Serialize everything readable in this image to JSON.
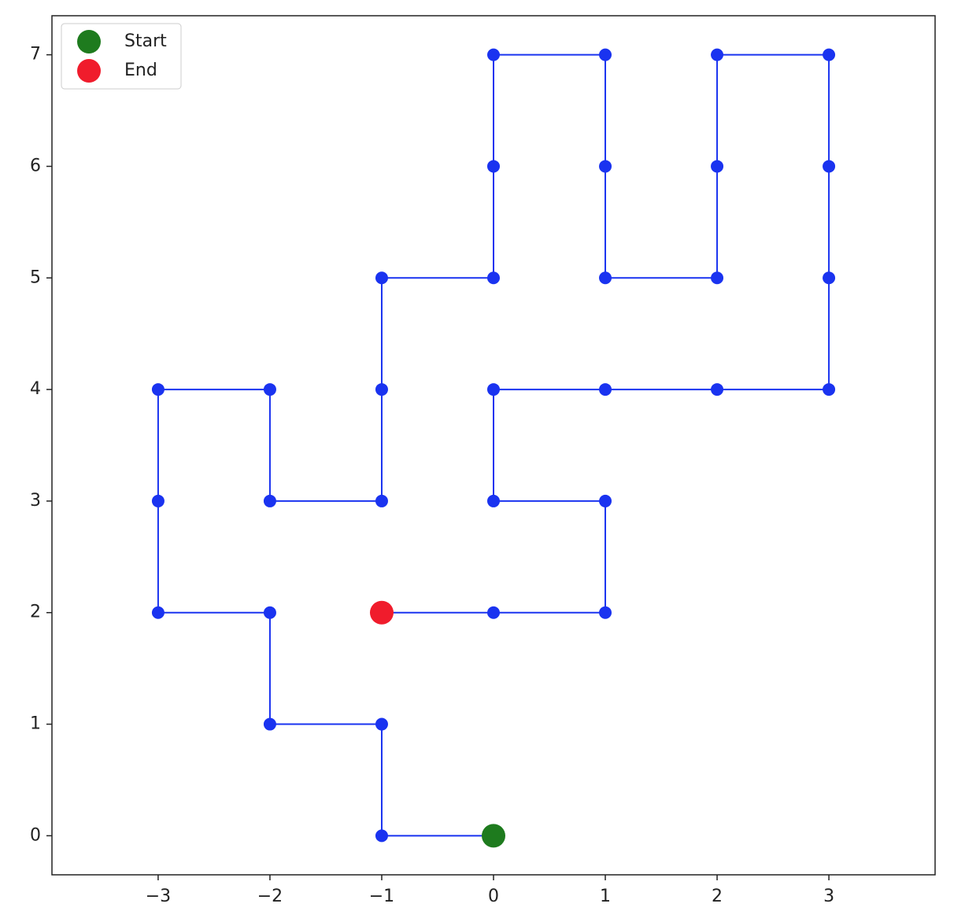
{
  "chart_data": {
    "type": "line",
    "x": [
      0,
      -1,
      -1,
      -2,
      -2,
      -3,
      -3,
      -3,
      -2,
      -2,
      -1,
      -1,
      -1,
      0,
      0,
      0,
      1,
      1,
      1,
      2,
      2,
      2,
      3,
      3,
      3,
      3,
      2,
      1,
      0,
      0,
      1,
      1,
      0,
      -1
    ],
    "values": [
      0,
      0,
      1,
      1,
      2,
      2,
      3,
      4,
      4,
      3,
      3,
      4,
      5,
      5,
      6,
      7,
      7,
      6,
      5,
      5,
      6,
      7,
      7,
      6,
      5,
      4,
      4,
      4,
      4,
      3,
      3,
      2,
      2,
      2
    ],
    "color": "#1a33f0",
    "markers": [
      {
        "name": "Start",
        "color": "#1e7b1e",
        "x": 0,
        "y": 0
      },
      {
        "name": "End",
        "color": "#f01c2c",
        "x": -1,
        "y": 2
      }
    ],
    "legend": "upper left",
    "xlim": [
      -3.95,
      3.95
    ],
    "ylim": [
      -0.35,
      7.35
    ],
    "xticks": [
      {
        "value": -3,
        "label": "−3"
      },
      {
        "value": -2,
        "label": "−2"
      },
      {
        "value": -1,
        "label": "−1"
      },
      0,
      1,
      2,
      3
    ],
    "yticks": [
      0,
      1,
      2,
      3,
      4,
      5,
      6,
      7
    ]
  }
}
